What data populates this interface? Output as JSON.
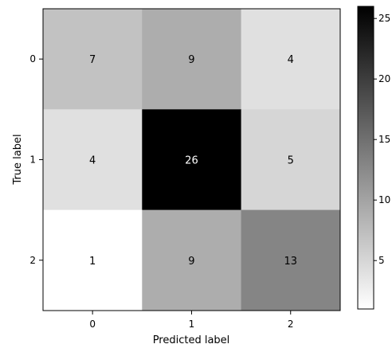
{
  "chart_data": {
    "type": "heatmap",
    "title": "",
    "xlabel": "Predicted label",
    "ylabel": "True label",
    "x_tick_labels": [
      "0",
      "1",
      "2"
    ],
    "y_tick_labels": [
      "0",
      "1",
      "2"
    ],
    "matrix": [
      [
        7,
        9,
        4
      ],
      [
        4,
        26,
        5
      ],
      [
        1,
        9,
        13
      ]
    ],
    "colormap": "gray_r",
    "colorbar": {
      "range": [
        1,
        26
      ],
      "tick_values": [
        5,
        10,
        15,
        20,
        25
      ],
      "tick_labels": [
        "5",
        "10",
        "15",
        "20",
        "25"
      ]
    },
    "text_colors": {
      "light_cell": "#000000",
      "dark_cell": "#ffffff"
    },
    "grid": false
  }
}
